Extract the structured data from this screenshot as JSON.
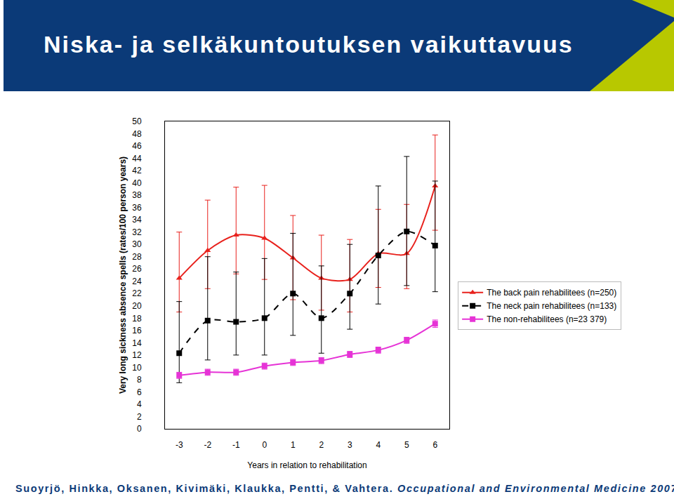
{
  "header": {
    "title": "Niska- ja selkäkuntoutuksen vaikuttavuus"
  },
  "footer": {
    "authors": "Suoyrjö, Hinkka, Oksanen, Kivimäki, Klaukka, Pentti, & Vahtera.",
    "journal": "Occupational and Environmental Medicine 2007."
  },
  "chart_data": {
    "type": "line",
    "x_label": "Years in relation to rehabilitation",
    "y_label": "Very long sickness absence spells (rates/100 person years)",
    "x": [
      -3,
      -2,
      -1,
      0,
      1,
      2,
      3,
      4,
      5,
      6
    ],
    "xlim": [
      -3.5,
      6.5
    ],
    "xticks": [
      -3,
      -2,
      -1,
      0,
      1,
      2,
      3,
      4,
      5,
      6
    ],
    "ylim": [
      0,
      50
    ],
    "yticks": [
      0,
      2,
      4,
      6,
      8,
      10,
      12,
      14,
      16,
      18,
      20,
      22,
      24,
      26,
      28,
      30,
      32,
      34,
      36,
      38,
      40,
      42,
      44,
      46,
      48,
      50
    ],
    "grid": false,
    "legend": "right",
    "series": [
      {
        "name": "The back pain rehabilitees (n=250)",
        "color": "#e8211c",
        "marker": "triangle-up",
        "line_style": "solid",
        "values": [
          24.5,
          29.0,
          31.5,
          31.0,
          27.8,
          24.5,
          24.3,
          28.5,
          28.5,
          39.5
        ],
        "ci_upper": [
          32.0,
          37.2,
          39.3,
          39.6,
          34.7,
          31.5,
          30.8,
          35.7,
          36.5,
          47.8
        ],
        "ci_lower": [
          19.0,
          22.8,
          25.2,
          24.3,
          21.0,
          19.3,
          19.0,
          23.0,
          22.8,
          32.3
        ]
      },
      {
        "name": "The neck pain rehabilitees (n=133)",
        "color": "#000000",
        "marker": "square",
        "line_style": "dash",
        "values": [
          12.3,
          17.6,
          17.4,
          18.0,
          22.0,
          18.0,
          22.0,
          28.2,
          32.1,
          29.8
        ],
        "ci_upper": [
          20.7,
          28.0,
          25.5,
          27.7,
          31.8,
          26.5,
          30.0,
          39.5,
          44.3,
          40.3
        ],
        "ci_lower": [
          7.5,
          11.2,
          12.0,
          12.0,
          15.2,
          12.3,
          16.2,
          20.3,
          23.3,
          22.3
        ]
      },
      {
        "name": "The non-rehabilitees (n=23 379)",
        "color": "#e633d6",
        "marker": "square",
        "line_style": "solid",
        "values": [
          8.7,
          9.2,
          9.2,
          10.2,
          10.8,
          11.1,
          12.1,
          12.8,
          14.4,
          17.1
        ],
        "ci_upper": [
          9.2,
          9.7,
          9.7,
          10.7,
          11.3,
          11.6,
          12.6,
          13.3,
          14.9,
          17.7
        ],
        "ci_lower": [
          8.2,
          8.7,
          8.7,
          9.7,
          10.3,
          10.6,
          11.6,
          12.3,
          13.9,
          16.5
        ]
      }
    ]
  }
}
